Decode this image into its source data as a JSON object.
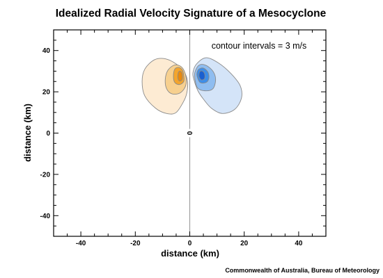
{
  "chart_data": {
    "type": "contour",
    "title": "Idealized Radial Velocity Signature of a Mesocyclone",
    "xlabel": "distance (km)",
    "ylabel": "distance (km)",
    "xlim": [
      -50,
      50
    ],
    "ylim": [
      -50,
      50
    ],
    "xticks": [
      -40,
      -20,
      0,
      20,
      40
    ],
    "yticks": [
      -40,
      -20,
      0,
      20,
      40
    ],
    "x_tick_labels": [
      "-40",
      "-20",
      "0",
      "20",
      "40"
    ],
    "y_tick_labels": [
      "-40",
      "-20",
      "0",
      "20",
      "40"
    ],
    "grid": false,
    "annotation": "contour intervals = 3 m/s",
    "zero_contour_label": "0",
    "contour_interval": 3,
    "divider_x": 0,
    "lobes": [
      {
        "name": "",
        "side": "left",
        "center": [
          -3.5,
          28.5
        ],
        "levels": [
          {
            "level": 1,
            "color": "#fdebd3",
            "points": [
              [
                -1,
                20
              ],
              [
                -2,
                16
              ],
              [
                -5,
                10
              ],
              [
                -8.5,
                9.5
              ],
              [
                -12.5,
                12
              ],
              [
                -16.5,
                18
              ],
              [
                -17.5,
                25
              ],
              [
                -16.5,
                31
              ],
              [
                -13,
                35.5
              ],
              [
                -9,
                36
              ],
              [
                -5,
                33.5
              ],
              [
                -2,
                29.5
              ],
              [
                -0.8,
                25
              ]
            ]
          },
          {
            "level": 2,
            "color": "#f7d08f",
            "points": [
              [
                -1.5,
                23
              ],
              [
                -3.5,
                19.5
              ],
              [
                -6.5,
                19
              ],
              [
                -8.5,
                21.5
              ],
              [
                -9,
                26
              ],
              [
                -8,
                30.5
              ],
              [
                -5.5,
                33
              ],
              [
                -3,
                32
              ],
              [
                -1.5,
                28
              ]
            ]
          },
          {
            "level": 3,
            "color": "#f3a52d",
            "points": [
              [
                -2.2,
                25
              ],
              [
                -3.8,
                23.5
              ],
              [
                -5.5,
                24.5
              ],
              [
                -6,
                27.5
              ],
              [
                -5.5,
                31
              ],
              [
                -4,
                31.8
              ],
              [
                -2.7,
                30.5
              ],
              [
                -2.2,
                28
              ]
            ]
          },
          {
            "level": 4,
            "color": "#ea8a0c",
            "points": [
              [
                -2.8,
                26
              ],
              [
                -3.6,
                25.2
              ],
              [
                -4.3,
                26.2
              ],
              [
                -4.3,
                28.8
              ],
              [
                -3.8,
                30
              ],
              [
                -3,
                29.5
              ],
              [
                -2.7,
                28
              ]
            ]
          }
        ]
      },
      {
        "name": "",
        "side": "right",
        "center": [
          4,
          28.5
        ],
        "levels": [
          {
            "level": 1,
            "color": "#d4e4f8",
            "points": [
              [
                1.5,
                26
              ],
              [
                3,
                20.5
              ],
              [
                5,
                16.5
              ],
              [
                8,
                12
              ],
              [
                12,
                9.5
              ],
              [
                16.5,
                11.5
              ],
              [
                19,
                17
              ],
              [
                18.5,
                23
              ],
              [
                15,
                29
              ],
              [
                10.5,
                34
              ],
              [
                6,
                36.5
              ],
              [
                2.5,
                33.5
              ],
              [
                1.2,
                29.5
              ]
            ]
          },
          {
            "level": 2,
            "color": "#8fbdf0",
            "points": [
              [
                1.8,
                27
              ],
              [
                2.8,
                22
              ],
              [
                5.5,
                20.5
              ],
              [
                8.5,
                21.5
              ],
              [
                9.5,
                26
              ],
              [
                8.5,
                30
              ],
              [
                6,
                32.8
              ],
              [
                3.5,
                33
              ],
              [
                2,
                30
              ]
            ]
          },
          {
            "level": 3,
            "color": "#3e8ee8",
            "points": [
              [
                2.7,
                27.5
              ],
              [
                3.8,
                24.5
              ],
              [
                6,
                24.5
              ],
              [
                7,
                26.5
              ],
              [
                6.7,
                29.5
              ],
              [
                5,
                31.5
              ],
              [
                3.4,
                31
              ],
              [
                2.7,
                29.5
              ]
            ]
          },
          {
            "level": 4,
            "color": "#1a5fd0",
            "points": [
              [
                3.4,
                27.5
              ],
              [
                4.2,
                25.8
              ],
              [
                5.4,
                26.3
              ],
              [
                5.5,
                28.5
              ],
              [
                4.7,
                30
              ],
              [
                3.7,
                29.8
              ]
            ]
          }
        ]
      }
    ]
  },
  "credit": "Commonwealth of Australia, Bureau of Meteorology"
}
